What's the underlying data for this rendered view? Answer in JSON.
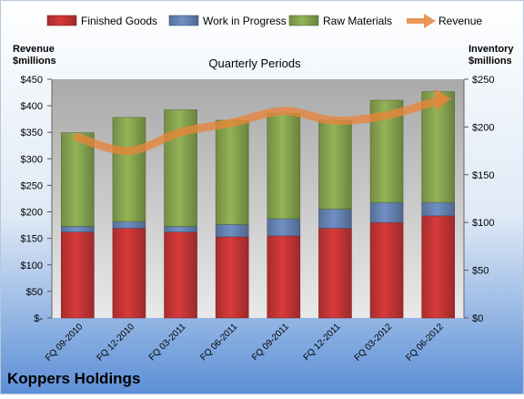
{
  "chart_data": {
    "type": "bar",
    "stacked": true,
    "title": "Quarterly Periods",
    "company": "Koppers Holdings",
    "left_axis_label": [
      "Revenue",
      "$millions"
    ],
    "right_axis_label": [
      "Inventory",
      "$millions"
    ],
    "left_axis": {
      "min": 0,
      "max": 450,
      "step": 50,
      "zero_label": "$-",
      "prefix": "$"
    },
    "right_axis": {
      "min": 0,
      "max": 250,
      "step": 50,
      "prefix": "$"
    },
    "categories": [
      "FQ 09-2010",
      "FQ 12-2010",
      "FQ 03-2011",
      "FQ 06-2011",
      "FQ 09-2011",
      "FQ 12-2011",
      "FQ 03-2012",
      "FQ 06-2012"
    ],
    "series": [
      {
        "name": "Finished Goods",
        "axis": "right",
        "color": "#d83a3a",
        "values": [
          90,
          94,
          90,
          85,
          86,
          94,
          100,
          107
        ]
      },
      {
        "name": "Work in Progress",
        "axis": "right",
        "color": "#6f8fc4",
        "values": [
          6,
          7,
          6,
          13,
          18,
          20,
          21,
          14
        ]
      },
      {
        "name": "Raw Materials",
        "axis": "right",
        "color": "#93b457",
        "values": [
          98,
          109,
          122,
          109,
          110,
          93,
          107,
          116
        ]
      }
    ],
    "line_series": {
      "name": "Revenue",
      "axis": "left",
      "color": "#e8853a",
      "values": [
        340,
        315,
        350,
        368,
        390,
        372,
        382,
        410
      ]
    },
    "legend_position": "top",
    "grid": false
  }
}
